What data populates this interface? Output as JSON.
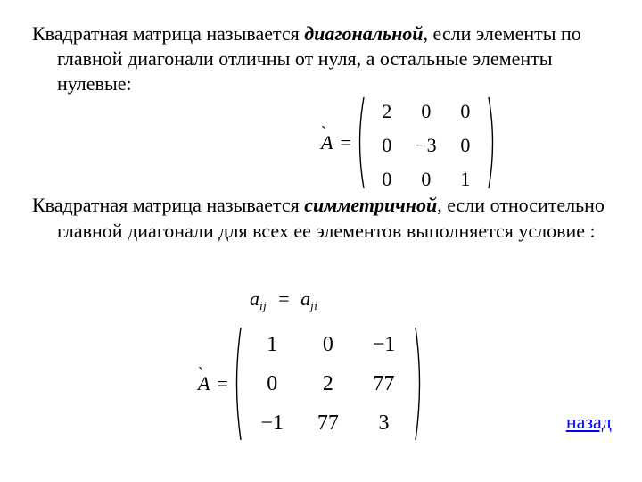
{
  "colors": {
    "text": "#000000",
    "link": "#0000ff",
    "background": "#ffffff"
  },
  "font": {
    "family": "Times New Roman",
    "body_size_pt": 17,
    "math_size_pt": 17
  },
  "para1": {
    "prefix": "Квадратная матрица называется ",
    "term": "диагональной",
    "suffix": ", если элементы по главной диагонали отличны от нуля, а остальные элементы нулевые:"
  },
  "para2": {
    "prefix": "Квадратная матрица называется ",
    "term": "симметричной",
    "suffix": ", если относительно главной диагонали для всех ее элементов выполняется условие                     :"
  },
  "matrix1": {
    "label": "A",
    "accent": "`",
    "eq": "=",
    "rows": [
      [
        "2",
        "0",
        "0"
      ],
      [
        "0",
        "−3",
        "0"
      ],
      [
        "0",
        "0",
        "1"
      ]
    ],
    "paren_width": 160,
    "paren_height": 104,
    "col_gap": 0
  },
  "matrix2": {
    "label": "A",
    "accent": "`",
    "eq": "=",
    "rows": [
      [
        "1",
        "0",
        "−1"
      ],
      [
        "0",
        "2",
        "77"
      ],
      [
        "−1",
        "77",
        "3"
      ]
    ],
    "paren_width": 216,
    "paren_height": 128,
    "col_gap": 0
  },
  "equation": {
    "lhs_base": "a",
    "lhs_sub": "ij",
    "op": "=",
    "rhs_base": "a",
    "rhs_sub": "ji"
  },
  "link": {
    "label": "назад"
  }
}
